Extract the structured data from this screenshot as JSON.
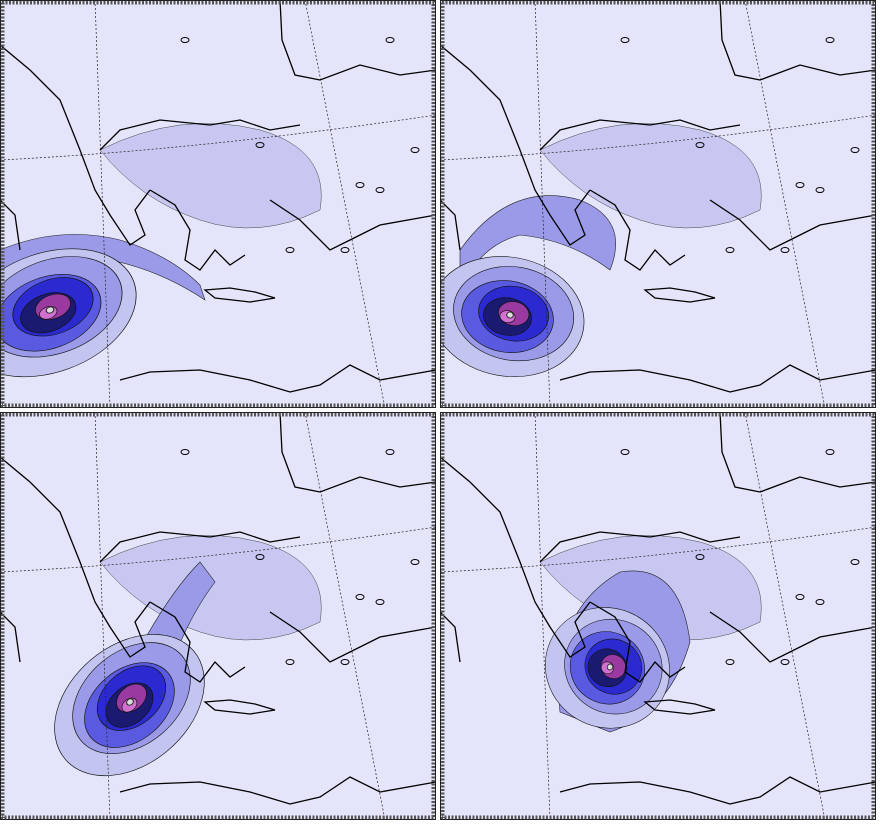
{
  "figure": {
    "panel_count": 4,
    "panels": [
      {
        "name": "panel-top-left"
      },
      {
        "name": "panel-top-right"
      },
      {
        "name": "panel-bottom-left"
      },
      {
        "name": "panel-bottom-right"
      }
    ],
    "colors": {
      "background": "#e4e4fb",
      "level_1": "#c4c4f0",
      "level_2": "#9a9ae8",
      "level_3": "#5a5ae0",
      "level_4": "#2a2ad0",
      "level_5": "#1a1a70",
      "level_6": "#9a3aa0",
      "level_7": "#d070d0",
      "coastline": "#000000",
      "frame": "#555555"
    },
    "map_layers": [
      "coastlines",
      "graticule",
      "contour-fill"
    ]
  }
}
